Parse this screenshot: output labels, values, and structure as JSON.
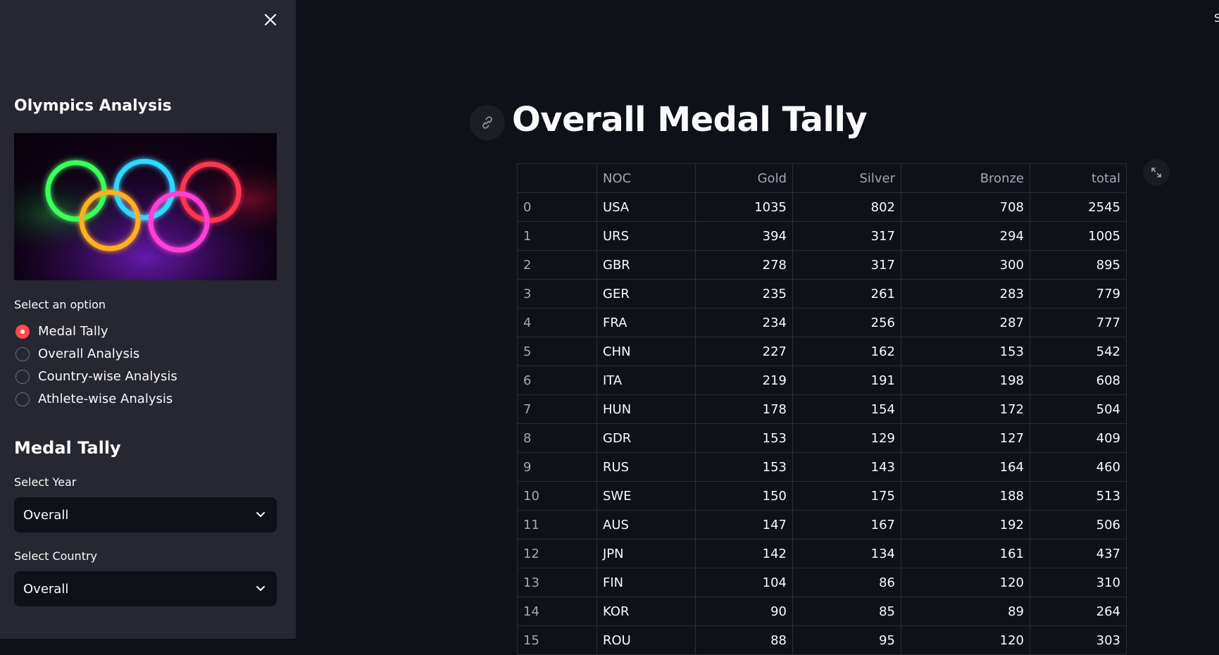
{
  "sidebar": {
    "title": "Olympics Analysis",
    "option_label": "Select an option",
    "options": [
      "Medal Tally",
      "Overall Analysis",
      "Country-wise Analysis",
      "Athlete-wise Analysis"
    ],
    "selected_option": "Medal Tally",
    "section_title": "Medal Tally",
    "year_label": "Select Year",
    "year_value": "Overall",
    "country_label": "Select Country",
    "country_value": "Overall"
  },
  "main": {
    "title": "Overall Medal Tally",
    "corner_text": "S",
    "table": {
      "columns": [
        "",
        "NOC",
        "Gold",
        "Silver",
        "Bronze",
        "total"
      ],
      "rows": [
        [
          "0",
          "USA",
          "1035",
          "802",
          "708",
          "2545"
        ],
        [
          "1",
          "URS",
          "394",
          "317",
          "294",
          "1005"
        ],
        [
          "2",
          "GBR",
          "278",
          "317",
          "300",
          "895"
        ],
        [
          "3",
          "GER",
          "235",
          "261",
          "283",
          "779"
        ],
        [
          "4",
          "FRA",
          "234",
          "256",
          "287",
          "777"
        ],
        [
          "5",
          "CHN",
          "227",
          "162",
          "153",
          "542"
        ],
        [
          "6",
          "ITA",
          "219",
          "191",
          "198",
          "608"
        ],
        [
          "7",
          "HUN",
          "178",
          "154",
          "172",
          "504"
        ],
        [
          "8",
          "GDR",
          "153",
          "129",
          "127",
          "409"
        ],
        [
          "9",
          "RUS",
          "153",
          "143",
          "164",
          "460"
        ],
        [
          "10",
          "SWE",
          "150",
          "175",
          "188",
          "513"
        ],
        [
          "11",
          "AUS",
          "147",
          "167",
          "192",
          "506"
        ],
        [
          "12",
          "JPN",
          "142",
          "134",
          "161",
          "437"
        ],
        [
          "13",
          "FIN",
          "104",
          "86",
          "120",
          "310"
        ],
        [
          "14",
          "KOR",
          "90",
          "85",
          "89",
          "264"
        ],
        [
          "15",
          "ROU",
          "88",
          "95",
          "120",
          "303"
        ]
      ]
    }
  },
  "colors": {
    "accent": "#ff4b4b",
    "sidebar_bg": "#262730",
    "main_bg": "#0e1117"
  },
  "icons": {
    "close": "close-icon",
    "link": "link-icon",
    "expand": "expand-icon",
    "chevron": "chevron-down-icon"
  }
}
